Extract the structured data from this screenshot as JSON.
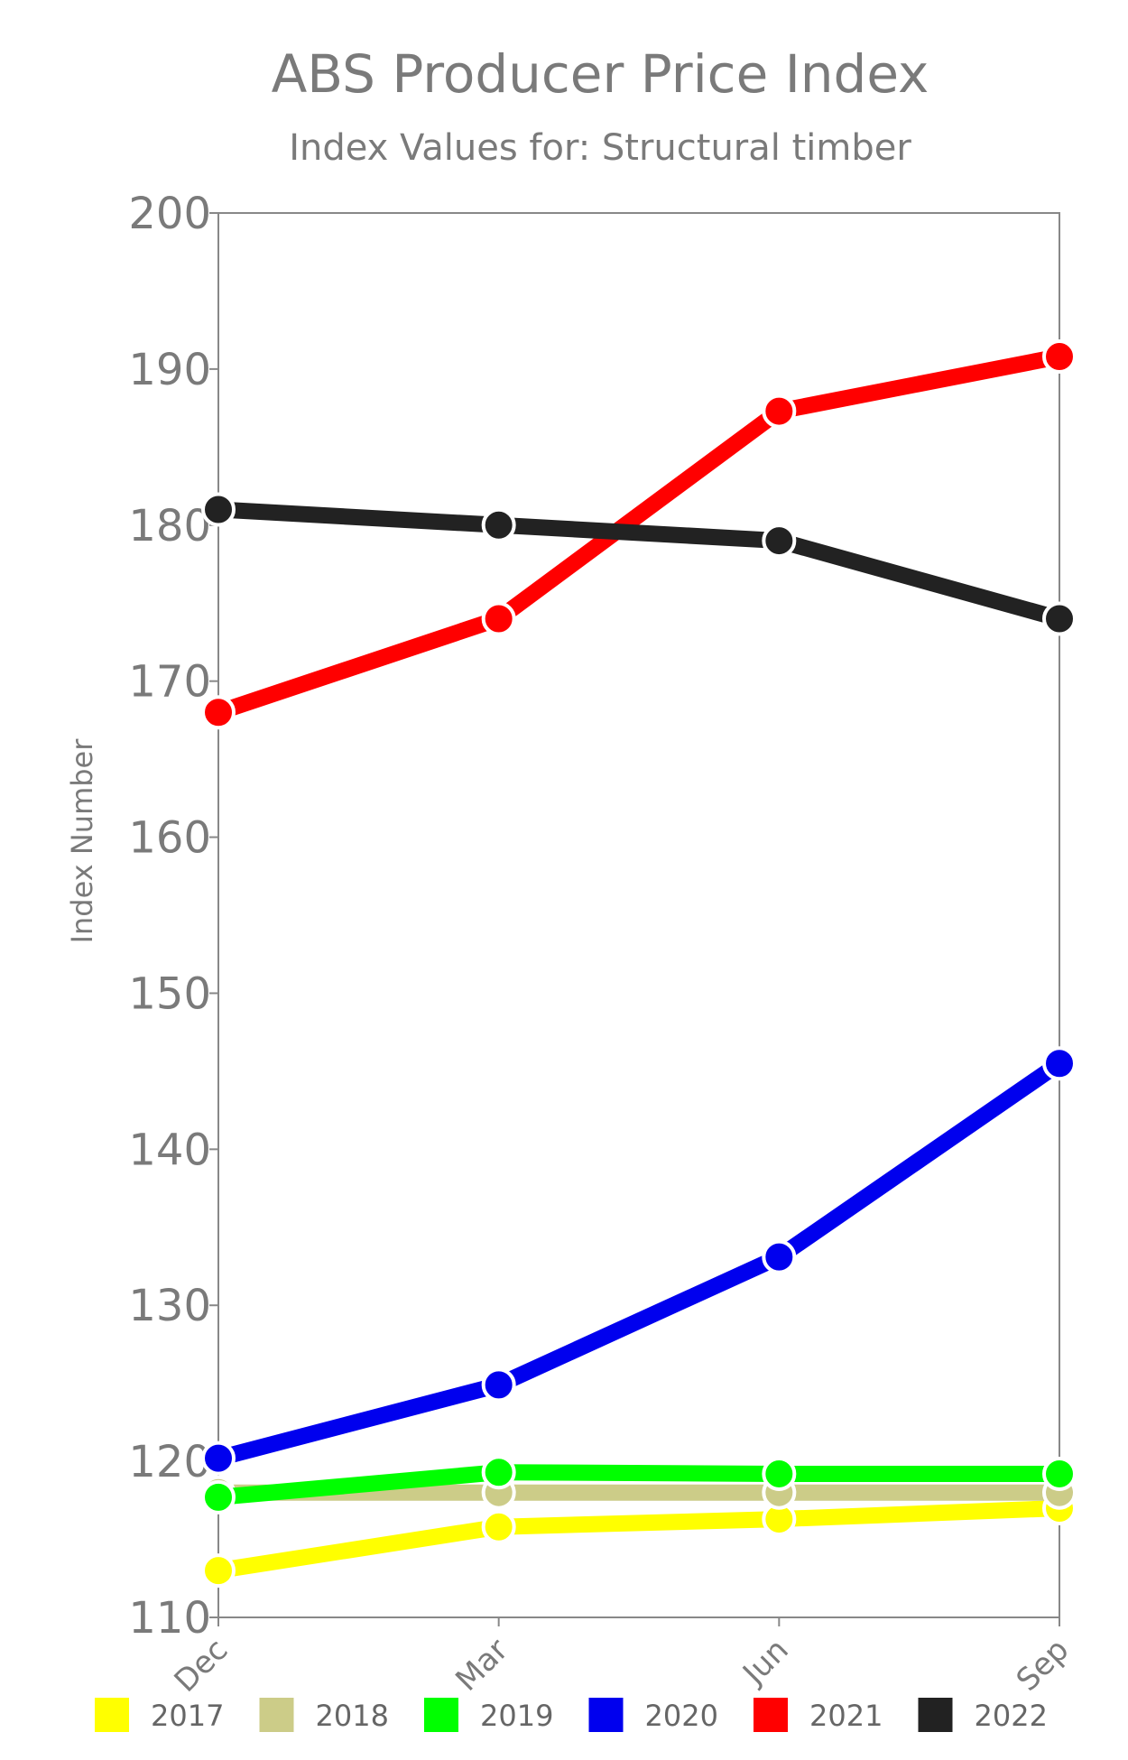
{
  "chart_data": {
    "type": "line",
    "title": "ABS Producer Price Index",
    "subtitle": "Index Values for: Structural timber",
    "xlabel": "",
    "ylabel": "Index Number",
    "categories": [
      "Dec",
      "Mar",
      "Jun",
      "Sep"
    ],
    "ylim": [
      110,
      200
    ],
    "yticks": [
      110,
      120,
      130,
      140,
      150,
      160,
      170,
      180,
      190,
      200
    ],
    "grid": false,
    "legend_position": "bottom",
    "series": [
      {
        "name": "2017",
        "color": "#ffff00",
        "values": [
          113.0,
          115.8,
          116.3,
          117.0
        ]
      },
      {
        "name": "2018",
        "color": "#cccc88",
        "values": [
          118.0,
          118.0,
          118.0,
          118.0
        ]
      },
      {
        "name": "2019",
        "color": "#00ff00",
        "values": [
          117.7,
          119.3,
          119.2,
          119.2
        ]
      },
      {
        "name": "2020",
        "color": "#0000ee",
        "values": [
          120.2,
          124.9,
          133.1,
          145.5
        ]
      },
      {
        "name": "2021",
        "color": "#ff0000",
        "values": [
          168.0,
          174.0,
          187.3,
          190.8
        ]
      },
      {
        "name": "2022",
        "color": "#222222",
        "values": [
          181.0,
          180.0,
          179.0,
          174.0
        ]
      }
    ]
  }
}
